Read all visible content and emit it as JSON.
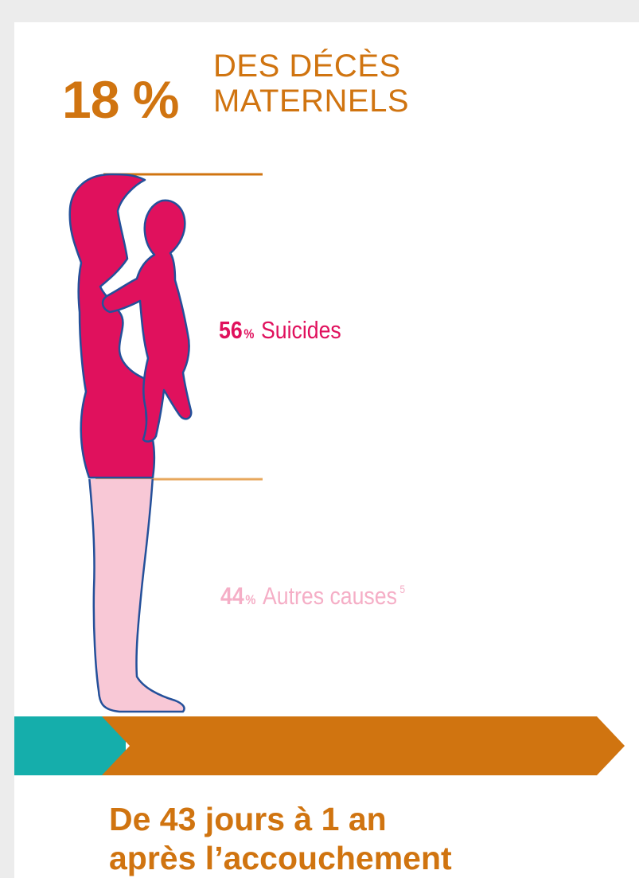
{
  "headline": {
    "percent": "18 %",
    "line1": "DES DÉCÈS",
    "line2": "MATERNELS"
  },
  "breakdown": [
    {
      "value": "56",
      "unit": "%",
      "label": "Suicides",
      "color": "#e0115d",
      "share": 56
    },
    {
      "value": "44",
      "unit": "%",
      "label": "Autres causes",
      "footnote": "5",
      "color": "#f5aec6",
      "share": 44
    }
  ],
  "timeline": {
    "caption_line1": "De 43 jours à 1 an",
    "caption_line2": "après l’accouchement",
    "colors": {
      "early": "#15aeab",
      "late": "#d07410"
    }
  },
  "illustration": "mother-holding-child-silhouette",
  "colors": {
    "accent": "#d07410",
    "suicide": "#e0115d",
    "other": "#f5aec6",
    "outline": "#24509a"
  }
}
